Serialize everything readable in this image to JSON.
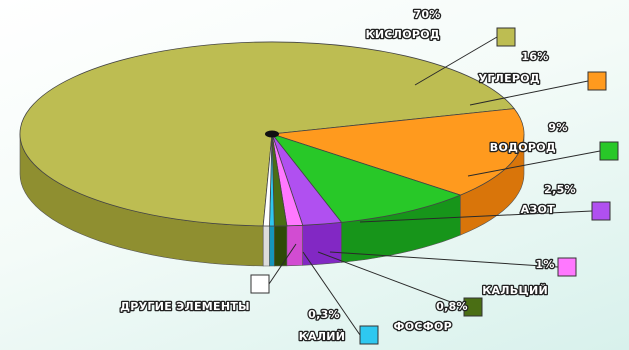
{
  "chart_data": {
    "type": "pie",
    "title": "",
    "legend_placement": "right",
    "slices": [
      {
        "label": "КИСЛОРОД",
        "value_label": "70%",
        "value": 70,
        "color": "#bdbd52",
        "color_dark": "#8f8f30"
      },
      {
        "label": "УГЛЕРОД",
        "value_label": "16%",
        "value": 16,
        "color": "#ff9a1e",
        "color_dark": "#d9750a"
      },
      {
        "label": "ВОДОРОД",
        "value_label": "9%",
        "value": 9,
        "color": "#28c828",
        "color_dark": "#17951a"
      },
      {
        "label": "АЗОТ",
        "value_label": "2,5%",
        "value": 2.5,
        "color": "#b050f0",
        "color_dark": "#8228c4"
      },
      {
        "label": "КАЛЬЦИЙ",
        "value_label": "1%",
        "value": 1,
        "color": "#ff78ff",
        "color_dark": "#d24cd2"
      },
      {
        "label": "ФОСФОР",
        "value_label": "0,8%",
        "value": 0.8,
        "color": "#4a6e14",
        "color_dark": "#2f4a08"
      },
      {
        "label": "КАЛИЙ",
        "value_label": "0,3%",
        "value": 0.3,
        "color": "#2ec8f0",
        "color_dark": "#1596bc"
      },
      {
        "label": "ДРУГИЕ ЭЛЕМЕНТЫ",
        "value_label": "",
        "value": 0.4,
        "color": "#ffffff",
        "color_dark": "#dcdcdc"
      }
    ]
  }
}
